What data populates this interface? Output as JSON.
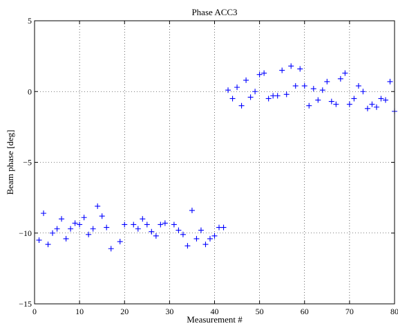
{
  "chart_data": {
    "type": "scatter",
    "title": "Phase ACC3",
    "xlabel": "Measurement #",
    "ylabel": "Beam phase [deg]",
    "xlim": [
      0,
      80
    ],
    "ylim": [
      -15,
      5
    ],
    "xticks": [
      0,
      10,
      20,
      30,
      40,
      50,
      60,
      70,
      80
    ],
    "yticks": [
      -15,
      -10,
      -5,
      0,
      5
    ],
    "xtick_labels": [
      "0",
      "10",
      "20",
      "30",
      "40",
      "50",
      "60",
      "70",
      "80"
    ],
    "ytick_labels": [
      "−15",
      "−10",
      "−5",
      "0",
      "5"
    ],
    "grid": true,
    "marker": "+",
    "color": "#0000ff",
    "series": [
      {
        "x": [
          1,
          2,
          3,
          4,
          5,
          6,
          7,
          8,
          9,
          10,
          11,
          12,
          13,
          14,
          15,
          16,
          17,
          19,
          20,
          22,
          23,
          24,
          25,
          26,
          27,
          28,
          29,
          31,
          32,
          33,
          34,
          35,
          36,
          37,
          38,
          39,
          40,
          41,
          42,
          43,
          44,
          45,
          46,
          47,
          48,
          49,
          50,
          51,
          52,
          53,
          54,
          55,
          56,
          57,
          58,
          59,
          60,
          61,
          62,
          63,
          64,
          65,
          66,
          67,
          68,
          69,
          70,
          71,
          72,
          73,
          74,
          75,
          76,
          77,
          78,
          79,
          80
        ],
        "y": [
          -10.5,
          -8.6,
          -10.8,
          -10.0,
          -9.7,
          -9.0,
          -10.4,
          -9.7,
          -9.3,
          -9.4,
          -8.9,
          -10.1,
          -9.7,
          -8.1,
          -8.8,
          -9.6,
          -11.1,
          -10.6,
          -9.4,
          -9.4,
          -9.7,
          -9.0,
          -9.4,
          -9.9,
          -10.2,
          -9.4,
          -9.3,
          -9.4,
          -9.8,
          -10.1,
          -10.9,
          -8.4,
          -10.4,
          -9.8,
          -10.8,
          -10.4,
          -10.2,
          -9.6,
          -9.6,
          0.1,
          -0.5,
          0.3,
          -1.0,
          0.8,
          -0.4,
          0.0,
          1.2,
          1.3,
          -0.5,
          -0.3,
          -0.3,
          1.5,
          -0.2,
          1.8,
          0.4,
          1.6,
          0.4,
          -1.0,
          0.2,
          -0.6,
          0.1,
          0.7,
          -0.7,
          -0.9,
          0.9,
          1.3,
          -0.9,
          -0.5,
          0.4,
          0.0,
          -1.2,
          -0.9,
          -1.1,
          -0.5,
          -0.6,
          0.7,
          -1.4
        ]
      }
    ]
  }
}
